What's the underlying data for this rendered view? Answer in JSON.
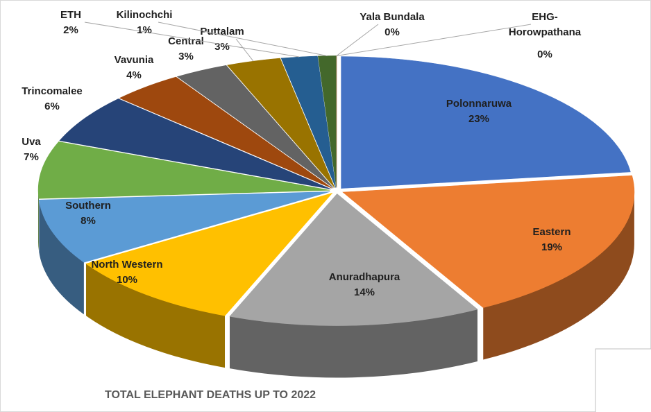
{
  "chart_data": {
    "type": "pie",
    "title": "TOTAL ELEPHANT DEATHS UP TO 2022",
    "categories": [
      "Polonnaruwa",
      "Eastern",
      "Anuradhapura",
      "North Western",
      "Southern",
      "Uva",
      "Trincomalee",
      "Vavunia",
      "Central",
      "Puttalam",
      "ETH",
      "Kilinochchi",
      "Yala Bundala",
      "EHG-Horowpathana"
    ],
    "values": [
      23,
      19,
      14,
      10,
      8,
      7,
      6,
      4,
      3,
      3,
      2,
      1,
      0,
      0
    ],
    "value_labels": [
      "23%",
      "19%",
      "14%",
      "10%",
      "8%",
      "7%",
      "6%",
      "4%",
      "3%",
      "3%",
      "2%",
      "1%",
      "0%",
      "0%"
    ],
    "colors": [
      "#4472c4",
      "#ed7d31",
      "#a5a5a5",
      "#ffc000",
      "#5b9bd5",
      "#70ad47",
      "#264478",
      "#9e480e",
      "#636363",
      "#997300",
      "#255e91",
      "#43682b",
      "#698ed0",
      "#f1975a"
    ]
  }
}
